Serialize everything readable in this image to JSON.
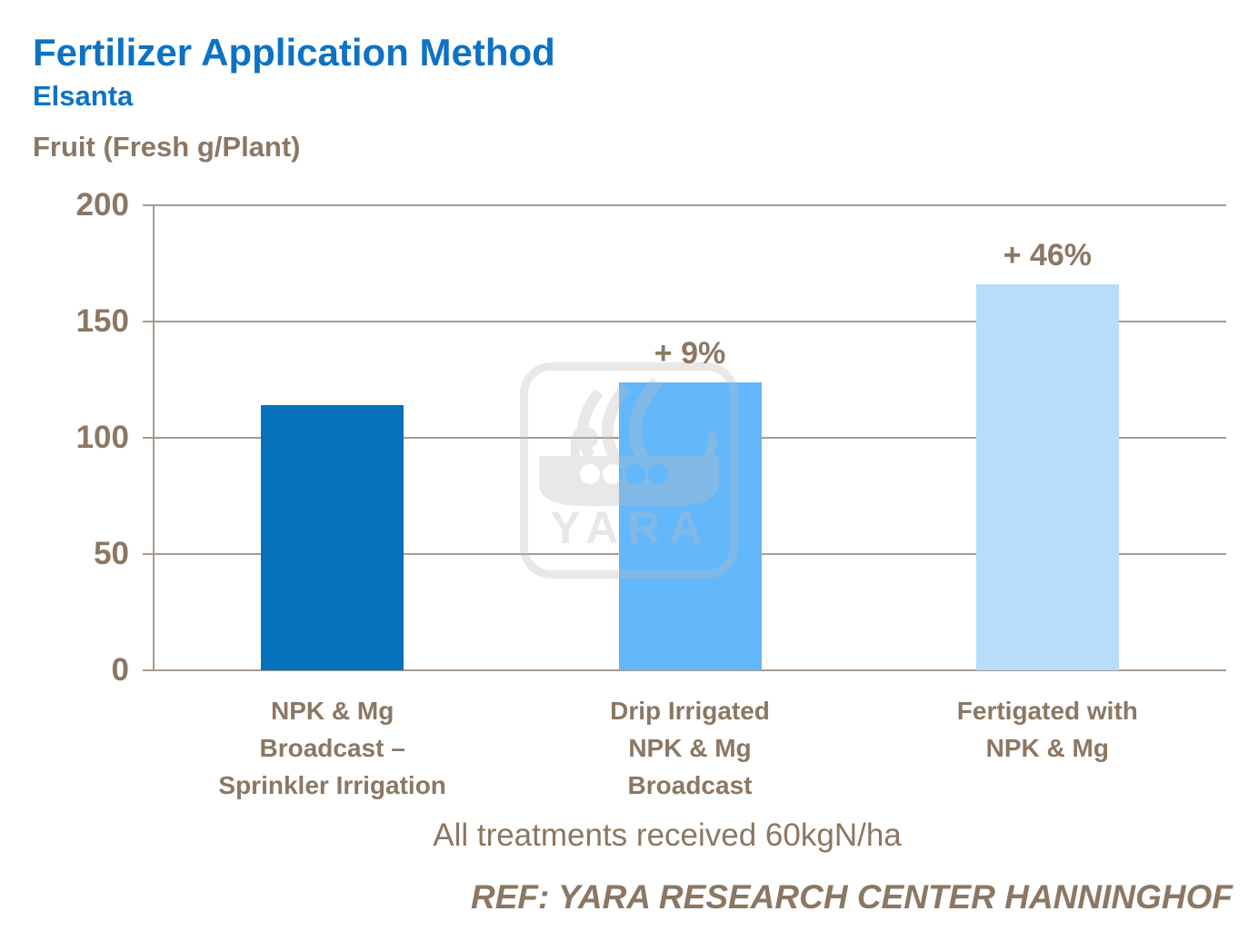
{
  "page": {
    "title": "Fertilizer Application Method",
    "subtitle": "Elsanta",
    "axis_title": "Fruit (Fresh g/Plant)",
    "footnote": "All treatments received 60kgN/ha",
    "reference": "REF: YARA RESEARCH CENTER HANNINGHOF",
    "watermark_label": "YARA"
  },
  "colors": {
    "title_blue": "#0d72c4",
    "text_brown": "#8b7763",
    "grid_line": "#a89b8d",
    "bar_dark_blue": "#0571bd",
    "bar_medium_blue": "#63b7fb",
    "bar_light_blue": "#b8dcfb",
    "watermark_gray": "#bcbcbc"
  },
  "chart_data": {
    "type": "bar",
    "title": "Fertilizer Application Method",
    "subtitle": "Elsanta",
    "ylabel": "Fruit (Fresh g/Plant)",
    "xlabel": "",
    "ylim": [
      0,
      200
    ],
    "yticks": [
      0,
      50,
      100,
      150,
      200
    ],
    "grid": true,
    "legend": "none",
    "categories": [
      [
        "NPK & Mg",
        "Broadcast –",
        "Sprinkler Irrigation"
      ],
      [
        "Drip Irrigated",
        "NPK & Mg",
        "Broadcast"
      ],
      [
        "Fertigated with",
        "NPK & Mg"
      ]
    ],
    "values": [
      114,
      124,
      166
    ],
    "bar_annotations": [
      "",
      "+ 9%",
      "+ 46%"
    ],
    "bar_colors": [
      "#0571bd",
      "#63b7fb",
      "#b8dcfb"
    ],
    "footnote": "All treatments received 60kgN/ha",
    "reference": "REF: YARA RESEARCH CENTER HANNINGHOF",
    "watermark": "YARA"
  }
}
